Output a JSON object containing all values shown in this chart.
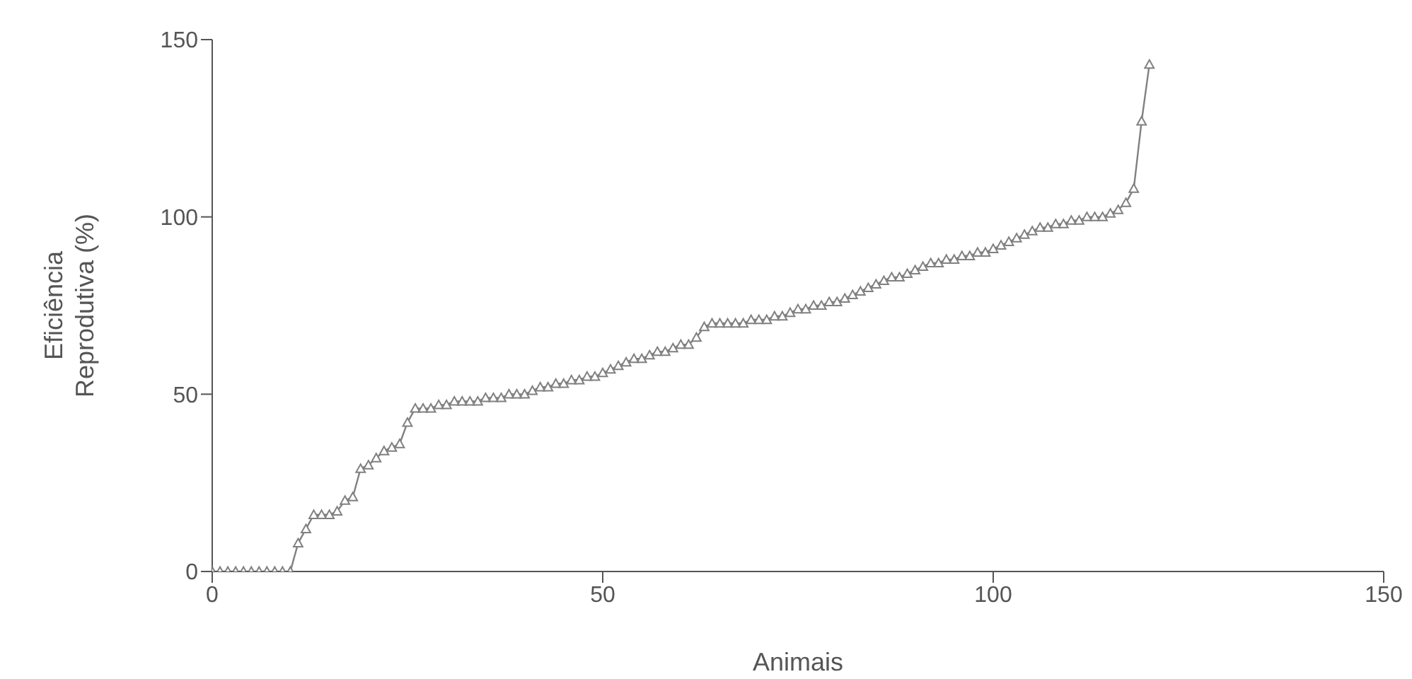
{
  "chart_data": {
    "type": "line",
    "xlabel": "Animais",
    "ylabel": "Eficiência Reprodutiva (%)",
    "x": [
      0,
      1,
      2,
      3,
      4,
      5,
      6,
      7,
      8,
      9,
      10,
      11,
      12,
      13,
      14,
      15,
      16,
      17,
      18,
      19,
      20,
      21,
      22,
      23,
      24,
      25,
      26,
      27,
      28,
      29,
      30,
      31,
      32,
      33,
      34,
      35,
      36,
      37,
      38,
      39,
      40,
      41,
      42,
      43,
      44,
      45,
      46,
      47,
      48,
      49,
      50,
      51,
      52,
      53,
      54,
      55,
      56,
      57,
      58,
      59,
      60,
      61,
      62,
      63,
      64,
      65,
      66,
      67,
      68,
      69,
      70,
      71,
      72,
      73,
      74,
      75,
      76,
      77,
      78,
      79,
      80,
      81,
      82,
      83,
      84,
      85,
      86,
      87,
      88,
      89,
      90,
      91,
      92,
      93,
      94,
      95,
      96,
      97,
      98,
      99,
      100,
      101,
      102,
      103,
      104,
      105,
      106,
      107,
      108,
      109,
      110,
      111,
      112,
      113,
      114,
      115,
      116,
      117,
      118,
      119,
      120
    ],
    "series": [
      {
        "color": "#808080",
        "values": [
          0,
          0,
          0,
          0,
          0,
          0,
          0,
          0,
          0,
          0,
          0,
          8,
          12,
          16,
          16,
          16,
          17,
          20,
          21,
          29,
          30,
          32,
          34,
          35,
          36,
          42,
          46,
          46,
          46,
          47,
          47,
          48,
          48,
          48,
          48,
          49,
          49,
          49,
          50,
          50,
          50,
          51,
          52,
          52,
          53,
          53,
          54,
          54,
          55,
          55,
          56,
          57,
          58,
          59,
          60,
          60,
          61,
          62,
          62,
          63,
          64,
          64,
          66,
          69,
          70,
          70,
          70,
          70,
          70,
          71,
          71,
          71,
          72,
          72,
          73,
          74,
          74,
          75,
          75,
          76,
          76,
          77,
          78,
          79,
          80,
          81,
          82,
          83,
          83,
          84,
          85,
          86,
          87,
          87,
          88,
          88,
          89,
          89,
          90,
          90,
          91,
          92,
          93,
          94,
          95,
          96,
          97,
          97,
          98,
          98,
          99,
          99,
          100,
          100,
          100,
          101,
          102,
          104,
          108,
          127,
          143
        ]
      }
    ],
    "xlim": [
      0,
      150
    ],
    "xticks": [
      0,
      50,
      100,
      150
    ],
    "ylim": [
      0,
      150
    ],
    "yticks": [
      0,
      50,
      100,
      150
    ],
    "marker": "triangle",
    "grid": false,
    "legend": false
  }
}
